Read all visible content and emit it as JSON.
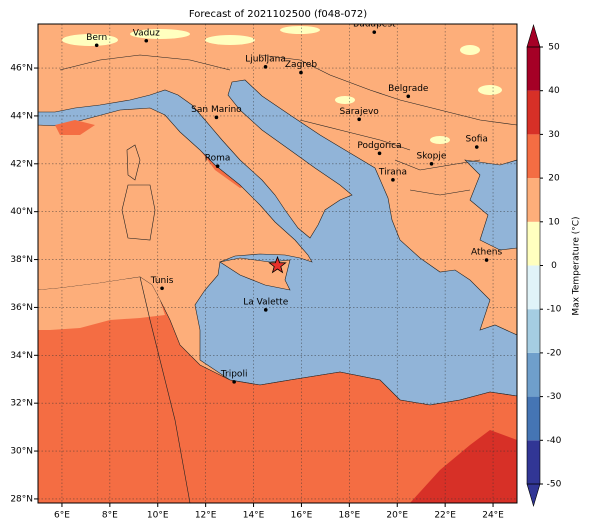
{
  "title": "Forecast of 2021102500 (f048-072)",
  "map": {
    "lonlim": [
      5,
      25
    ],
    "latlim": [
      27.83,
      47.84
    ],
    "lonticks": [
      {
        "value": 6,
        "label": "6°E"
      },
      {
        "value": 8,
        "label": "8°E"
      },
      {
        "value": 10,
        "label": "10°E"
      },
      {
        "value": 12,
        "label": "12°E"
      },
      {
        "value": 14,
        "label": "14°E"
      },
      {
        "value": 16,
        "label": "16°E"
      },
      {
        "value": 18,
        "label": "18°E"
      },
      {
        "value": 20,
        "label": "20°E"
      },
      {
        "value": 22,
        "label": "22°E"
      },
      {
        "value": 24,
        "label": "24°E"
      }
    ],
    "latticks": [
      {
        "value": 28,
        "label": "28°N"
      },
      {
        "value": 30,
        "label": "30°N"
      },
      {
        "value": 32,
        "label": "32°N"
      },
      {
        "value": 34,
        "label": "34°N"
      },
      {
        "value": 36,
        "label": "36°N"
      },
      {
        "value": 38,
        "label": "38°N"
      },
      {
        "value": 40,
        "label": "40°N"
      },
      {
        "value": 42,
        "label": "42°N"
      },
      {
        "value": 44,
        "label": "44°N"
      },
      {
        "value": 46,
        "label": "46°N"
      }
    ],
    "grid": true,
    "cities": [
      {
        "name": "Bern",
        "lon": 7.45,
        "lat": 46.95
      },
      {
        "name": "Vaduz",
        "lon": 9.52,
        "lat": 47.14
      },
      {
        "name": "Budapest",
        "lon": 19.04,
        "lat": 47.5
      },
      {
        "name": "Ljubljana",
        "lon": 14.5,
        "lat": 46.05
      },
      {
        "name": "Zagreb",
        "lon": 15.98,
        "lat": 45.81
      },
      {
        "name": "Belgrade",
        "lon": 20.46,
        "lat": 44.82
      },
      {
        "name": "San Marino",
        "lon": 12.45,
        "lat": 43.94
      },
      {
        "name": "Sarajevo",
        "lon": 18.41,
        "lat": 43.86
      },
      {
        "name": "Sofia",
        "lon": 23.32,
        "lat": 42.7
      },
      {
        "name": "Podgorica",
        "lon": 19.26,
        "lat": 42.44
      },
      {
        "name": "Skopje",
        "lon": 21.43,
        "lat": 42.0
      },
      {
        "name": "Roma",
        "lon": 12.5,
        "lat": 41.9
      },
      {
        "name": "Tirana",
        "lon": 19.82,
        "lat": 41.33
      },
      {
        "name": "Athens",
        "lon": 23.73,
        "lat": 37.98
      },
      {
        "name": "Tunis",
        "lon": 10.18,
        "lat": 36.8
      },
      {
        "name": "La Valette",
        "lon": 14.51,
        "lat": 35.9
      },
      {
        "name": "Tripoli",
        "lon": 13.19,
        "lat": 32.89
      }
    ],
    "star": {
      "lon": 15.0,
      "lat": 37.75,
      "color": "#e8312a"
    }
  },
  "colorbar": {
    "label": "Max Temperature (°C)",
    "ticks": [
      -50,
      -40,
      -30,
      -20,
      -10,
      0,
      10,
      20,
      30,
      40,
      50
    ],
    "colors": [
      "#313695",
      "#4575b4",
      "#6f9fcb",
      "#a5cde2",
      "#e0f3f8",
      "#ffffbf",
      "#fdae7a",
      "#f46d43",
      "#d73027",
      "#a50026"
    ]
  }
}
